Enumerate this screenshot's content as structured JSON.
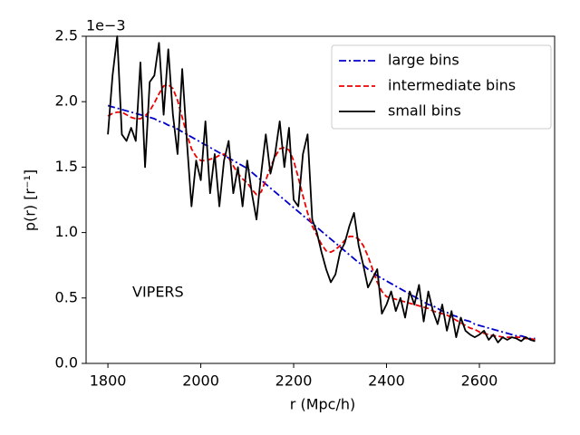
{
  "chart_data": {
    "type": "line",
    "x_label": "r (Mpc/h)",
    "y_label": "p(r) [r⁻¹]",
    "y_offset_label": "1e−3",
    "annotation": "VIPERS",
    "legend": "upper right",
    "xlim": [
      1753,
      2762
    ],
    "ylim": [
      0,
      2.5
    ],
    "xticks": [
      1800,
      2000,
      2200,
      2400,
      2600
    ],
    "yticks": [
      {
        "value": 0,
        "label": "0.0"
      },
      0.5,
      {
        "value": 1,
        "label": "1.0"
      },
      1.5,
      {
        "value": 2,
        "label": "2.0"
      },
      2.5
    ],
    "x": [
      1800,
      1810,
      1820,
      1830,
      1840,
      1850,
      1860,
      1870,
      1880,
      1890,
      1900,
      1910,
      1920,
      1930,
      1940,
      1950,
      1960,
      1970,
      1980,
      1990,
      2000,
      2010,
      2020,
      2030,
      2040,
      2050,
      2060,
      2070,
      2080,
      2090,
      2100,
      2110,
      2120,
      2130,
      2140,
      2150,
      2160,
      2170,
      2180,
      2190,
      2200,
      2210,
      2220,
      2230,
      2240,
      2250,
      2260,
      2270,
      2280,
      2290,
      2300,
      2310,
      2320,
      2330,
      2340,
      2350,
      2360,
      2370,
      2380,
      2390,
      2400,
      2410,
      2420,
      2430,
      2440,
      2450,
      2460,
      2470,
      2480,
      2490,
      2500,
      2510,
      2520,
      2530,
      2540,
      2550,
      2560,
      2570,
      2580,
      2590,
      2600,
      2610,
      2620,
      2630,
      2640,
      2650,
      2660,
      2670,
      2680,
      2690,
      2700,
      2710,
      2720
    ],
    "series": [
      {
        "name": "large bins",
        "color": "#0000cc",
        "linestyle": "dashdot",
        "values": [
          1.97,
          1.96,
          1.95,
          1.94,
          1.93,
          1.92,
          1.91,
          1.9,
          1.89,
          1.88,
          1.87,
          1.85,
          1.84,
          1.82,
          1.81,
          1.79,
          1.77,
          1.75,
          1.73,
          1.71,
          1.69,
          1.67,
          1.65,
          1.63,
          1.61,
          1.59,
          1.57,
          1.55,
          1.53,
          1.51,
          1.49,
          1.46,
          1.43,
          1.4,
          1.37,
          1.34,
          1.31,
          1.28,
          1.25,
          1.22,
          1.19,
          1.16,
          1.13,
          1.1,
          1.07,
          1.04,
          1.01,
          0.98,
          0.95,
          0.92,
          0.89,
          0.86,
          0.83,
          0.8,
          0.77,
          0.75,
          0.72,
          0.7,
          0.67,
          0.65,
          0.63,
          0.61,
          0.59,
          0.57,
          0.55,
          0.53,
          0.51,
          0.49,
          0.47,
          0.45,
          0.44,
          0.42,
          0.4,
          0.39,
          0.37,
          0.36,
          0.34,
          0.33,
          0.32,
          0.3,
          0.29,
          0.28,
          0.27,
          0.26,
          0.25,
          0.24,
          0.23,
          0.22,
          0.21,
          0.21,
          0.2,
          0.19,
          0.19
        ]
      },
      {
        "name": "intermediate bins",
        "color": "#ee0000",
        "linestyle": "dashed",
        "values": [
          1.89,
          1.91,
          1.92,
          1.92,
          1.9,
          1.88,
          1.87,
          1.87,
          1.89,
          1.93,
          1.99,
          2.06,
          2.12,
          2.13,
          2.1,
          2.01,
          1.88,
          1.75,
          1.64,
          1.58,
          1.55,
          1.55,
          1.56,
          1.57,
          1.59,
          1.6,
          1.57,
          1.51,
          1.45,
          1.41,
          1.38,
          1.33,
          1.29,
          1.31,
          1.4,
          1.5,
          1.58,
          1.64,
          1.65,
          1.63,
          1.55,
          1.42,
          1.28,
          1.15,
          1.05,
          0.98,
          0.91,
          0.86,
          0.85,
          0.87,
          0.9,
          0.94,
          0.97,
          0.97,
          0.95,
          0.9,
          0.82,
          0.72,
          0.62,
          0.55,
          0.51,
          0.5,
          0.49,
          0.48,
          0.47,
          0.46,
          0.45,
          0.44,
          0.43,
          0.42,
          0.4,
          0.39,
          0.38,
          0.37,
          0.35,
          0.33,
          0.31,
          0.29,
          0.27,
          0.26,
          0.24,
          0.23,
          0.22,
          0.21,
          0.21,
          0.2,
          0.2,
          0.2,
          0.2,
          0.2,
          0.19,
          0.19,
          0.18
        ]
      },
      {
        "name": "small bins",
        "color": "#000000",
        "linestyle": "solid",
        "values": [
          1.75,
          2.2,
          2.5,
          1.75,
          1.7,
          1.8,
          1.7,
          2.3,
          1.5,
          2.15,
          2.2,
          2.45,
          1.9,
          2.4,
          1.9,
          1.6,
          2.25,
          1.7,
          1.2,
          1.55,
          1.4,
          1.85,
          1.3,
          1.6,
          1.2,
          1.55,
          1.7,
          1.3,
          1.5,
          1.2,
          1.55,
          1.3,
          1.1,
          1.45,
          1.75,
          1.45,
          1.6,
          1.85,
          1.5,
          1.8,
          1.25,
          1.2,
          1.6,
          1.75,
          1.1,
          1.0,
          0.85,
          0.72,
          0.62,
          0.68,
          0.85,
          0.92,
          1.05,
          1.15,
          0.9,
          0.75,
          0.58,
          0.65,
          0.72,
          0.38,
          0.45,
          0.55,
          0.4,
          0.5,
          0.35,
          0.55,
          0.45,
          0.6,
          0.32,
          0.55,
          0.4,
          0.3,
          0.45,
          0.25,
          0.4,
          0.2,
          0.35,
          0.25,
          0.22,
          0.2,
          0.22,
          0.25,
          0.18,
          0.22,
          0.16,
          0.2,
          0.18,
          0.2,
          0.19,
          0.17,
          0.2,
          0.18,
          0.17
        ]
      }
    ]
  }
}
